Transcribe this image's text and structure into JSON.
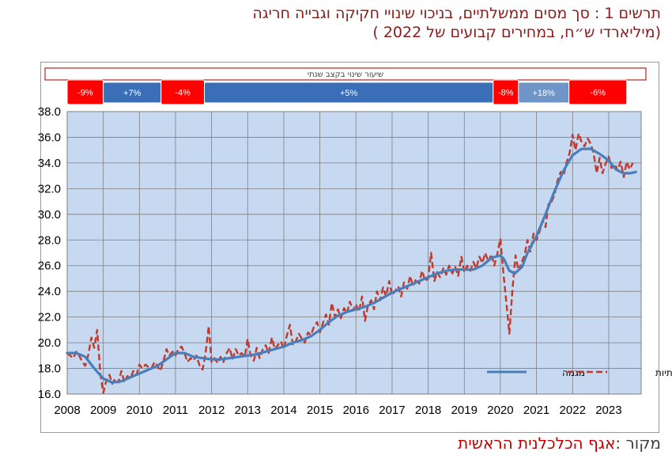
{
  "title_line1": "תרשים 1 : סך מסים ממשלתיים, בניכוי שינויי חקיקה וגבייה חריגה",
  "title_line2": "(מיליארדי ש״ח, במחירים קבועים של 2022 )",
  "source_label": "מקור :",
  "source_value": "אגף הכלכלנית הראשית",
  "colors": {
    "title": "#8b1a1a",
    "plot_bg": "#c6d9f1",
    "grid": "#7f7f7f",
    "trend": "#4a7ebb",
    "seasonal": "#c0392b",
    "negative_box": "#ff0000",
    "positive_box": "#3a6fb8",
    "positive_box_light": "#6f94c8"
  },
  "chart_data": {
    "type": "line",
    "title": "",
    "xlabel": "",
    "ylabel": "",
    "xlim": [
      2008,
      2023.9
    ],
    "ylim": [
      16.0,
      38.0
    ],
    "yticks": [
      16.0,
      18.0,
      20.0,
      22.0,
      24.0,
      26.0,
      28.0,
      30.0,
      32.0,
      34.0,
      36.0,
      38.0
    ],
    "xticks": [
      "2008",
      "2009",
      "2010",
      "2011",
      "2012",
      "2013",
      "2014",
      "2015",
      "2016",
      "2017",
      "2018",
      "2019",
      "2020",
      "2021",
      "2022",
      "2023"
    ],
    "grid": true,
    "legend_position": "bottom-right",
    "annual_change_header": "שיעור שינוי בקצב שנתי",
    "annual_change_periods": [
      {
        "from": 2008.0,
        "to": 2009.0,
        "label": "-9%",
        "sign": "neg"
      },
      {
        "from": 2009.0,
        "to": 2010.6,
        "label": "+7%",
        "sign": "pos"
      },
      {
        "from": 2010.6,
        "to": 2011.8,
        "label": "-4%",
        "sign": "neg"
      },
      {
        "from": 2011.8,
        "to": 2019.8,
        "label": "+5%",
        "sign": "pos"
      },
      {
        "from": 2019.8,
        "to": 2020.5,
        "label": "-8%",
        "sign": "neg"
      },
      {
        "from": 2020.5,
        "to": 2021.9,
        "label": "+18%",
        "sign": "pos_light"
      },
      {
        "from": 2021.9,
        "to": 2023.5,
        "label": "-6%",
        "sign": "neg"
      }
    ],
    "series": [
      {
        "name": "מגמה",
        "style": "solid",
        "points": [
          [
            2008.0,
            19.2
          ],
          [
            2008.25,
            19.2
          ],
          [
            2008.5,
            18.9
          ],
          [
            2008.75,
            18.0
          ],
          [
            2009.0,
            17.2
          ],
          [
            2009.25,
            16.9
          ],
          [
            2009.5,
            17.0
          ],
          [
            2009.75,
            17.3
          ],
          [
            2010.0,
            17.6
          ],
          [
            2010.25,
            17.9
          ],
          [
            2010.5,
            18.2
          ],
          [
            2010.75,
            18.7
          ],
          [
            2011.0,
            19.2
          ],
          [
            2011.25,
            19.2
          ],
          [
            2011.5,
            18.9
          ],
          [
            2011.75,
            18.8
          ],
          [
            2012.0,
            18.7
          ],
          [
            2012.25,
            18.7
          ],
          [
            2012.5,
            18.8
          ],
          [
            2012.75,
            18.9
          ],
          [
            2013.0,
            19.0
          ],
          [
            2013.25,
            19.1
          ],
          [
            2013.5,
            19.3
          ],
          [
            2013.75,
            19.5
          ],
          [
            2014.0,
            19.7
          ],
          [
            2014.25,
            20.0
          ],
          [
            2014.5,
            20.2
          ],
          [
            2014.75,
            20.5
          ],
          [
            2015.0,
            21.0
          ],
          [
            2015.25,
            21.6
          ],
          [
            2015.5,
            22.1
          ],
          [
            2015.75,
            22.4
          ],
          [
            2016.0,
            22.6
          ],
          [
            2016.25,
            22.8
          ],
          [
            2016.5,
            23.1
          ],
          [
            2016.75,
            23.5
          ],
          [
            2017.0,
            23.9
          ],
          [
            2017.25,
            24.2
          ],
          [
            2017.5,
            24.5
          ],
          [
            2017.75,
            24.8
          ],
          [
            2018.0,
            25.1
          ],
          [
            2018.25,
            25.4
          ],
          [
            2018.5,
            25.6
          ],
          [
            2018.75,
            25.7
          ],
          [
            2019.0,
            25.7
          ],
          [
            2019.25,
            25.7
          ],
          [
            2019.5,
            26.0
          ],
          [
            2019.75,
            26.6
          ],
          [
            2020.0,
            26.8
          ],
          [
            2020.1,
            26.5
          ],
          [
            2020.25,
            25.6
          ],
          [
            2020.4,
            25.4
          ],
          [
            2020.6,
            25.9
          ],
          [
            2020.75,
            27.0
          ],
          [
            2021.0,
            28.3
          ],
          [
            2021.25,
            30.0
          ],
          [
            2021.5,
            31.8
          ],
          [
            2021.75,
            33.4
          ],
          [
            2022.0,
            34.6
          ],
          [
            2022.25,
            35.1
          ],
          [
            2022.5,
            35.1
          ],
          [
            2022.75,
            34.7
          ],
          [
            2023.0,
            34.2
          ],
          [
            2023.2,
            33.5
          ],
          [
            2023.4,
            33.2
          ],
          [
            2023.6,
            33.2
          ],
          [
            2023.75,
            33.3
          ]
        ]
      },
      {
        "name": "מנוכה עונתיות",
        "style": "dashed",
        "points": [
          [
            2008.0,
            19.2
          ],
          [
            2008.08,
            19.0
          ],
          [
            2008.17,
            18.8
          ],
          [
            2008.25,
            19.3
          ],
          [
            2008.33,
            19.0
          ],
          [
            2008.42,
            18.5
          ],
          [
            2008.5,
            18.2
          ],
          [
            2008.58,
            19.0
          ],
          [
            2008.67,
            20.4
          ],
          [
            2008.75,
            19.6
          ],
          [
            2008.83,
            21.0
          ],
          [
            2008.92,
            17.5
          ],
          [
            2009.0,
            16.1
          ],
          [
            2009.08,
            17.0
          ],
          [
            2009.17,
            17.5
          ],
          [
            2009.25,
            16.8
          ],
          [
            2009.33,
            17.2
          ],
          [
            2009.42,
            16.9
          ],
          [
            2009.5,
            17.8
          ],
          [
            2009.58,
            17.0
          ],
          [
            2009.67,
            17.4
          ],
          [
            2009.75,
            17.2
          ],
          [
            2009.83,
            17.8
          ],
          [
            2009.92,
            17.5
          ],
          [
            2010.0,
            18.3
          ],
          [
            2010.08,
            18.0
          ],
          [
            2010.17,
            18.3
          ],
          [
            2010.25,
            18.1
          ],
          [
            2010.33,
            18.0
          ],
          [
            2010.42,
            18.5
          ],
          [
            2010.5,
            18.2
          ],
          [
            2010.58,
            17.8
          ],
          [
            2010.67,
            18.6
          ],
          [
            2010.75,
            19.5
          ],
          [
            2010.83,
            19.0
          ],
          [
            2010.92,
            19.3
          ],
          [
            2011.0,
            19.0
          ],
          [
            2011.08,
            19.5
          ],
          [
            2011.17,
            19.7
          ],
          [
            2011.25,
            19.2
          ],
          [
            2011.33,
            18.5
          ],
          [
            2011.42,
            18.8
          ],
          [
            2011.5,
            18.6
          ],
          [
            2011.58,
            19.0
          ],
          [
            2011.67,
            18.2
          ],
          [
            2011.75,
            17.9
          ],
          [
            2011.83,
            19.1
          ],
          [
            2011.92,
            21.3
          ],
          [
            2012.0,
            18.5
          ],
          [
            2012.08,
            18.8
          ],
          [
            2012.17,
            18.4
          ],
          [
            2012.25,
            18.9
          ],
          [
            2012.33,
            18.5
          ],
          [
            2012.42,
            19.2
          ],
          [
            2012.5,
            19.6
          ],
          [
            2012.58,
            18.7
          ],
          [
            2012.67,
            19.5
          ],
          [
            2012.75,
            19.0
          ],
          [
            2012.83,
            19.2
          ],
          [
            2012.92,
            18.9
          ],
          [
            2013.0,
            20.3
          ],
          [
            2013.08,
            19.0
          ],
          [
            2013.17,
            18.6
          ],
          [
            2013.25,
            19.6
          ],
          [
            2013.33,
            18.8
          ],
          [
            2013.42,
            19.5
          ],
          [
            2013.5,
            19.8
          ],
          [
            2013.58,
            19.2
          ],
          [
            2013.67,
            20.4
          ],
          [
            2013.75,
            19.5
          ],
          [
            2013.83,
            19.8
          ],
          [
            2013.92,
            20.1
          ],
          [
            2014.0,
            19.5
          ],
          [
            2014.08,
            20.5
          ],
          [
            2014.17,
            21.4
          ],
          [
            2014.25,
            19.8
          ],
          [
            2014.33,
            20.1
          ],
          [
            2014.42,
            20.7
          ],
          [
            2014.5,
            20.3
          ],
          [
            2014.58,
            20.0
          ],
          [
            2014.67,
            20.8
          ],
          [
            2014.75,
            20.6
          ],
          [
            2014.83,
            21.2
          ],
          [
            2014.92,
            21.6
          ],
          [
            2015.0,
            20.8
          ],
          [
            2015.08,
            21.5
          ],
          [
            2015.17,
            22.2
          ],
          [
            2015.25,
            21.4
          ],
          [
            2015.33,
            23.1
          ],
          [
            2015.42,
            22.0
          ],
          [
            2015.5,
            22.6
          ],
          [
            2015.58,
            21.9
          ],
          [
            2015.67,
            22.7
          ],
          [
            2015.75,
            22.3
          ],
          [
            2015.83,
            23.2
          ],
          [
            2015.92,
            22.5
          ],
          [
            2016.0,
            23.0
          ],
          [
            2016.08,
            22.4
          ],
          [
            2016.17,
            23.6
          ],
          [
            2016.25,
            21.7
          ],
          [
            2016.33,
            22.9
          ],
          [
            2016.42,
            23.3
          ],
          [
            2016.5,
            22.6
          ],
          [
            2016.58,
            24.0
          ],
          [
            2016.67,
            23.3
          ],
          [
            2016.75,
            24.3
          ],
          [
            2016.83,
            23.6
          ],
          [
            2016.92,
            24.8
          ],
          [
            2017.0,
            23.7
          ],
          [
            2017.08,
            24.0
          ],
          [
            2017.17,
            24.4
          ],
          [
            2017.25,
            23.6
          ],
          [
            2017.33,
            24.7
          ],
          [
            2017.42,
            24.2
          ],
          [
            2017.5,
            25.2
          ],
          [
            2017.58,
            24.4
          ],
          [
            2017.67,
            25.0
          ],
          [
            2017.75,
            24.6
          ],
          [
            2017.83,
            25.6
          ],
          [
            2017.92,
            24.8
          ],
          [
            2018.0,
            25.0
          ],
          [
            2018.08,
            27.0
          ],
          [
            2018.17,
            24.8
          ],
          [
            2018.25,
            25.5
          ],
          [
            2018.33,
            25.1
          ],
          [
            2018.42,
            25.8
          ],
          [
            2018.5,
            25.3
          ],
          [
            2018.58,
            26.0
          ],
          [
            2018.67,
            25.4
          ],
          [
            2018.75,
            25.9
          ],
          [
            2018.83,
            25.2
          ],
          [
            2018.92,
            26.7
          ],
          [
            2019.0,
            25.5
          ],
          [
            2019.08,
            26.0
          ],
          [
            2019.17,
            25.6
          ],
          [
            2019.25,
            26.3
          ],
          [
            2019.33,
            25.8
          ],
          [
            2019.42,
            26.7
          ],
          [
            2019.5,
            26.2
          ],
          [
            2019.58,
            27.0
          ],
          [
            2019.67,
            26.3
          ],
          [
            2019.75,
            26.9
          ],
          [
            2019.83,
            26.0
          ],
          [
            2019.92,
            27.0
          ],
          [
            2020.0,
            28.1
          ],
          [
            2020.08,
            25.5
          ],
          [
            2020.17,
            23.0
          ],
          [
            2020.25,
            20.7
          ],
          [
            2020.33,
            24.0
          ],
          [
            2020.42,
            26.8
          ],
          [
            2020.5,
            25.6
          ],
          [
            2020.58,
            26.2
          ],
          [
            2020.67,
            26.8
          ],
          [
            2020.75,
            28.0
          ],
          [
            2020.83,
            27.1
          ],
          [
            2020.92,
            28.5
          ],
          [
            2021.0,
            28.0
          ],
          [
            2021.08,
            28.6
          ],
          [
            2021.17,
            29.5
          ],
          [
            2021.25,
            29.0
          ],
          [
            2021.33,
            30.8
          ],
          [
            2021.42,
            31.0
          ],
          [
            2021.5,
            31.5
          ],
          [
            2021.58,
            32.6
          ],
          [
            2021.67,
            33.3
          ],
          [
            2021.75,
            33.0
          ],
          [
            2021.83,
            34.0
          ],
          [
            2021.92,
            34.8
          ],
          [
            2022.0,
            36.2
          ],
          [
            2022.08,
            35.0
          ],
          [
            2022.17,
            36.3
          ],
          [
            2022.25,
            35.6
          ],
          [
            2022.33,
            35.3
          ],
          [
            2022.42,
            35.9
          ],
          [
            2022.5,
            35.5
          ],
          [
            2022.58,
            34.8
          ],
          [
            2022.67,
            33.2
          ],
          [
            2022.75,
            34.4
          ],
          [
            2022.83,
            33.2
          ],
          [
            2022.92,
            34.0
          ],
          [
            2023.0,
            34.5
          ],
          [
            2023.08,
            33.6
          ],
          [
            2023.17,
            33.9
          ],
          [
            2023.25,
            33.4
          ],
          [
            2023.33,
            34.1
          ],
          [
            2023.42,
            32.9
          ],
          [
            2023.5,
            34.1
          ],
          [
            2023.58,
            33.5
          ],
          [
            2023.67,
            34.0
          ]
        ]
      }
    ]
  }
}
